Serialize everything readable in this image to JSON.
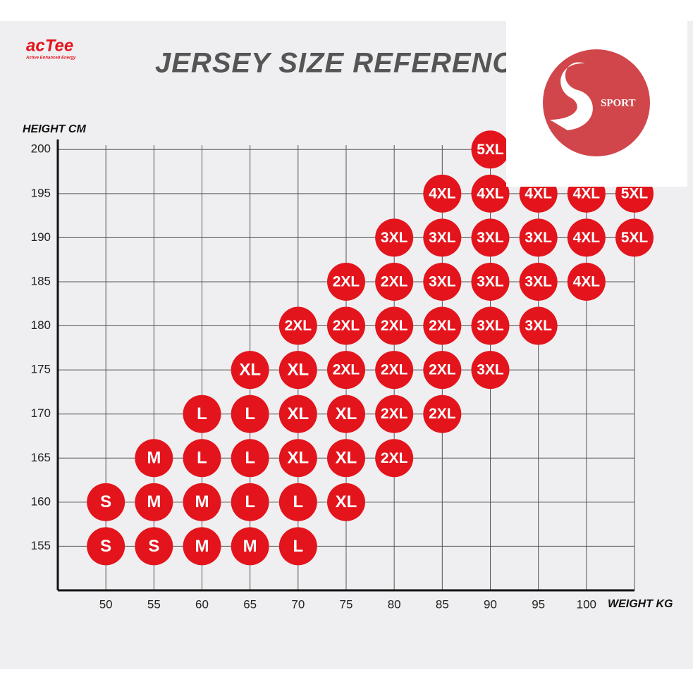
{
  "logo": {
    "brand": "acTee",
    "tagline": "Active Enhanced Energy"
  },
  "watermark": "SPORT",
  "chart_data": {
    "type": "size-grid",
    "title": "JERSEY SIZE REFERENCE TABLE",
    "y_label": "HEIGHT CM",
    "x_label": "WEIGHT KG",
    "color": "#e3141c",
    "xlim": [
      45,
      105
    ],
    "ylim": [
      150,
      200.5
    ],
    "xticks": [
      50,
      55,
      60,
      65,
      70,
      75,
      80,
      85,
      90,
      95,
      100
    ],
    "yticks": [
      155,
      160,
      165,
      170,
      175,
      180,
      185,
      190,
      195,
      200
    ],
    "grid": true,
    "x": [
      50,
      55,
      60,
      65,
      70,
      50,
      55,
      60,
      65,
      70,
      75,
      55,
      60,
      65,
      70,
      75,
      80,
      60,
      65,
      70,
      75,
      80,
      85,
      65,
      70,
      75,
      80,
      85,
      90,
      70,
      75,
      80,
      85,
      90,
      95,
      75,
      80,
      85,
      90,
      95,
      100,
      80,
      85,
      90,
      95,
      100,
      105,
      85,
      90,
      95,
      100,
      105,
      90
    ],
    "y": [
      155,
      155,
      155,
      155,
      155,
      160,
      160,
      160,
      160,
      160,
      160,
      165,
      165,
      165,
      165,
      165,
      165,
      170,
      170,
      170,
      170,
      170,
      170,
      175,
      175,
      175,
      175,
      175,
      175,
      180,
      180,
      180,
      180,
      180,
      180,
      185,
      185,
      185,
      185,
      185,
      185,
      190,
      190,
      190,
      190,
      190,
      190,
      195,
      195,
      195,
      195,
      195,
      200
    ],
    "labels": [
      "S",
      "S",
      "M",
      "M",
      "L",
      "S",
      "M",
      "M",
      "L",
      "L",
      "XL",
      "M",
      "L",
      "L",
      "XL",
      "XL",
      "2XL",
      "L",
      "L",
      "XL",
      "XL",
      "2XL",
      "2XL",
      "XL",
      "XL",
      "2XL",
      "2XL",
      "2XL",
      "3XL",
      "2XL",
      "2XL",
      "2XL",
      "2XL",
      "3XL",
      "3XL",
      "2XL",
      "2XL",
      "3XL",
      "3XL",
      "3XL",
      "4XL",
      "3XL",
      "3XL",
      "3XL",
      "3XL",
      "4XL",
      "5XL",
      "4XL",
      "4XL",
      "4XL",
      "4XL",
      "5XL",
      "5XL"
    ]
  }
}
